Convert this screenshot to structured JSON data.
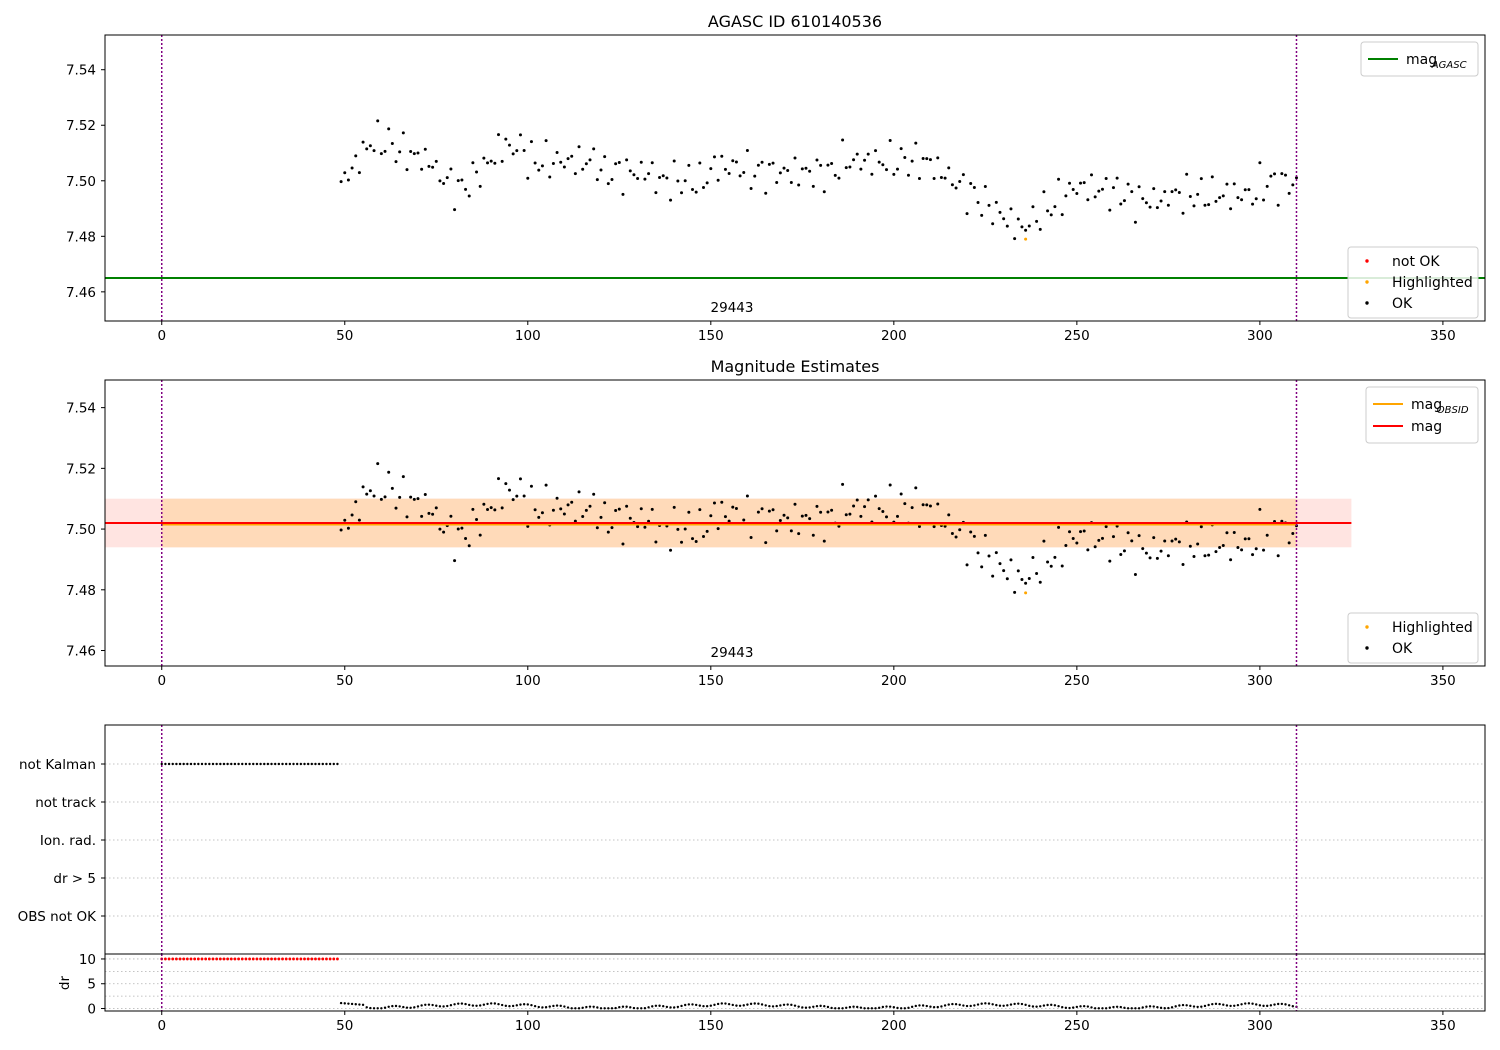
{
  "figure_colors": {
    "ok": "#000000",
    "not_ok": "#ff0000",
    "highlighted": "#ffa500",
    "mag_agasc_line": "#008000",
    "mag_obsid_line": "#ffa500",
    "mag_line": "#ff0000",
    "obs_boundary": "#800080",
    "obsid_band": "#ffdab9",
    "mag_band": "#ffe4e1",
    "grid": "#b0b0b0"
  },
  "chart_data": [
    {
      "type": "scatter",
      "title": "AGASC ID 610140536",
      "xlim": [
        -15.5,
        361.5
      ],
      "ylim": [
        7.4495,
        7.5525
      ],
      "x_ticks": [
        0,
        50,
        100,
        150,
        200,
        250,
        300,
        350
      ],
      "y_ticks": [
        7.46,
        7.48,
        7.5,
        7.52,
        7.54
      ],
      "y_tick_labels": [
        "7.46",
        "7.48",
        "7.50",
        "7.52",
        "7.54"
      ],
      "obs_boundaries": [
        0,
        310
      ],
      "obsid_annotation": "29443",
      "mag_agasc": 7.465,
      "highlighted": [
        {
          "x": 236,
          "y": 7.479
        }
      ],
      "legend_lines": [
        {
          "label": "mag",
          "subscript": "AGASC",
          "color": "#008000"
        }
      ],
      "legend_markers": [
        {
          "label": "not OK",
          "color": "#ff0000"
        },
        {
          "label": "Highlighted",
          "color": "#ffa500"
        },
        {
          "label": "OK",
          "color": "#000000"
        }
      ],
      "legend_lines_position": "upper right",
      "legend_markers_position": "lower right"
    },
    {
      "type": "scatter",
      "title": "Magnitude Estimates",
      "xlim": [
        -15.5,
        361.5
      ],
      "ylim": [
        7.4549,
        7.5491
      ],
      "x_ticks": [
        0,
        50,
        100,
        150,
        200,
        250,
        300,
        350
      ],
      "y_ticks": [
        7.46,
        7.48,
        7.5,
        7.52,
        7.54
      ],
      "y_tick_labels": [
        "7.46",
        "7.48",
        "7.50",
        "7.52",
        "7.54"
      ],
      "obs_boundaries": [
        0,
        310
      ],
      "obsid_annotation": "29443",
      "mag": 7.502,
      "mag_obsid": 7.5015,
      "mag_band": [
        7.494,
        7.51
      ],
      "obsid_band": [
        7.494,
        7.51
      ],
      "band_x_end": 325,
      "highlighted": [
        {
          "x": 236,
          "y": 7.479
        }
      ],
      "legend_lines": [
        {
          "label": "mag",
          "subscript": "OBSID",
          "color": "#ffa500"
        },
        {
          "label": "mag",
          "subscript": "",
          "color": "#ff0000"
        }
      ],
      "legend_markers": [
        {
          "label": "Highlighted",
          "color": "#ffa500"
        },
        {
          "label": "OK",
          "color": "#000000"
        }
      ],
      "legend_lines_position": "upper right",
      "legend_markers_position": "lower right"
    },
    {
      "type": "scatter",
      "title": "",
      "xlim": [
        -15.5,
        361.5
      ],
      "categories": [
        "not Kalman",
        "not track",
        "Ion. rad.",
        "dr > 5",
        "OBS not OK"
      ],
      "flagged_ranges": [
        {
          "category": "not Kalman",
          "x_start": 0,
          "x_end": 48
        }
      ],
      "obs_boundaries": [
        0,
        310
      ]
    },
    {
      "type": "scatter",
      "title": "",
      "ylabel": "dr",
      "xlim": [
        -15.5,
        361.5
      ],
      "ylim": [
        -0.5,
        11
      ],
      "x_ticks": [
        0,
        50,
        100,
        150,
        200,
        250,
        300,
        350
      ],
      "y_ticks": [
        0,
        5,
        10
      ],
      "y_tick_labels": [
        "0",
        "5",
        "10"
      ],
      "dr_clipped_range": {
        "x_start": 0,
        "x_end": 48,
        "value": 10
      },
      "obs_boundaries": [
        0,
        310
      ]
    }
  ]
}
